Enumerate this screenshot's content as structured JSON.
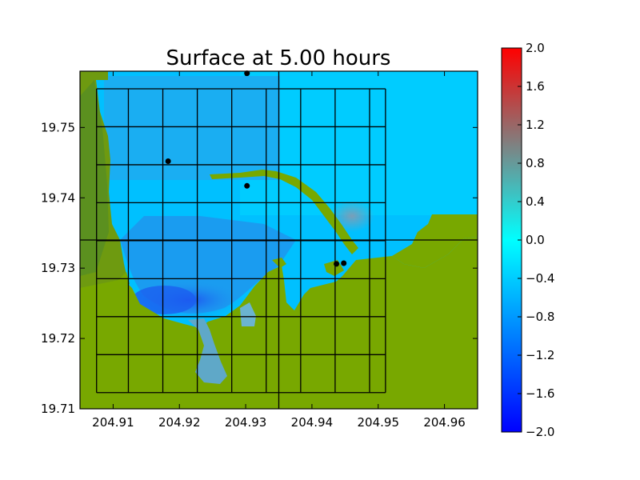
{
  "chart_data": {
    "type": "heatmap",
    "title": "Surface at 5.00 hours",
    "xlim": [
      204.905,
      204.965
    ],
    "ylim": [
      19.71,
      19.758
    ],
    "x_ticks": [
      204.91,
      204.92,
      204.93,
      204.94,
      204.95,
      204.96
    ],
    "x_tick_labels": [
      "204.91",
      "204.92",
      "204.93",
      "204.94",
      "204.95",
      "204.96"
    ],
    "y_ticks": [
      19.71,
      19.72,
      19.73,
      19.74,
      19.75
    ],
    "y_tick_labels": [
      "19.71",
      "19.72",
      "19.73",
      "19.74",
      "19.75"
    ],
    "colorbar": {
      "min": -2.0,
      "max": 2.0,
      "ticks": [
        2.0,
        1.6,
        1.2,
        0.8,
        0.4,
        0.0,
        -0.4,
        -0.8,
        -1.2,
        -1.6,
        -2.0
      ],
      "tick_labels": [
        "2.0",
        "1.6",
        "1.2",
        "0.8",
        "0.4",
        "0.0",
        "−0.4",
        "−0.8",
        "−1.2",
        "−1.6",
        "−2.0"
      ],
      "colormap": [
        "#0000ff",
        "#00ffff",
        "#808080",
        "#ff0000"
      ]
    },
    "land_color": "#78a800",
    "water_color": "#00c8ff",
    "grid_lines_x": [
      204.9075,
      204.9123,
      204.9175,
      204.9227,
      204.9279,
      204.9331,
      204.9383,
      204.9435,
      204.9487,
      204.9511
    ],
    "grid_lines_y": [
      19.7123,
      19.7177,
      19.7231,
      19.7285,
      19.7339,
      19.7393,
      19.7447,
      19.7501,
      19.7555
    ],
    "grid_extent": {
      "x": [
        204.9075,
        204.9511
      ],
      "y": [
        19.7123,
        19.7555
      ]
    },
    "crosshair": {
      "x": 204.935,
      "y": 19.734
    },
    "gauges": [
      {
        "x": 204.9302,
        "y": 19.7577
      },
      {
        "x": 204.9183,
        "y": 19.7452
      },
      {
        "x": 204.9302,
        "y": 19.7417
      },
      {
        "x": 204.9437,
        "y": 19.7306
      },
      {
        "x": 204.9448,
        "y": 19.7307
      }
    ]
  }
}
